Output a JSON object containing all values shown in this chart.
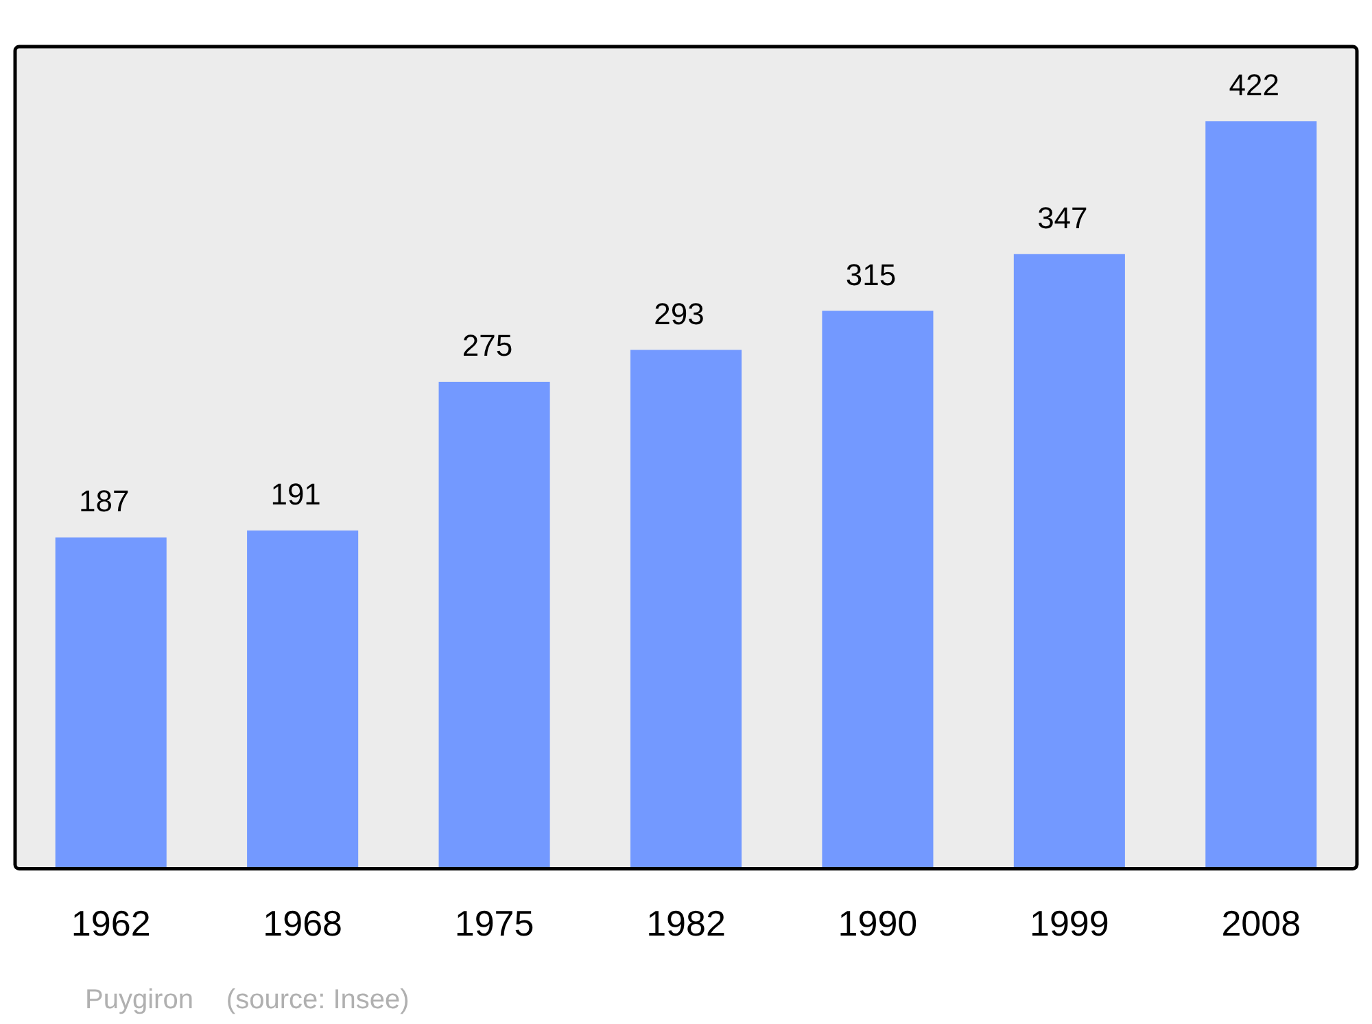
{
  "chart_data": {
    "type": "bar",
    "categories": [
      "1962",
      "1968",
      "1975",
      "1982",
      "1990",
      "1999",
      "2008"
    ],
    "values": [
      187,
      191,
      275,
      293,
      315,
      347,
      422
    ],
    "color": "#7399ff",
    "data_labels": true,
    "grid": false,
    "legend": false,
    "annotations": [
      "Puygiron",
      "(source: Insee)"
    ]
  }
}
